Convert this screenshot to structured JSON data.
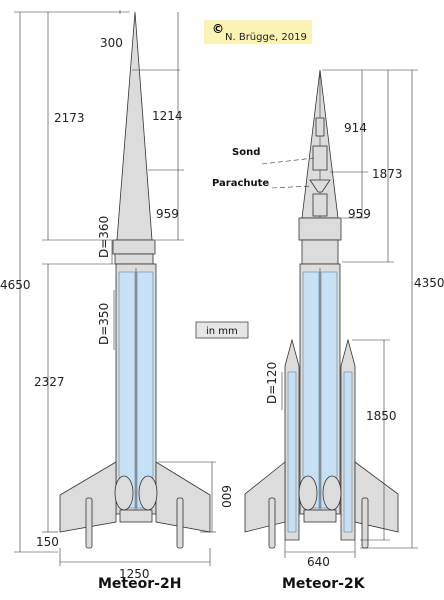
{
  "copyright": {
    "symbol": "©",
    "text": "N. Brügge, 2019"
  },
  "unit_label": "in mm",
  "rockets": [
    {
      "name": "Meteor-2H",
      "dimensions": {
        "tip": "300",
        "nose": "1214",
        "nose_lower": "959",
        "upper_total": "2173",
        "total": "4650",
        "lower": "2327",
        "fin_width": "1250",
        "base_offset": "150",
        "fin_height": "600",
        "d_upper": "D=360",
        "d_lower": "D=350"
      }
    },
    {
      "name": "Meteor-2K",
      "dimensions": {
        "nose": "914",
        "nose_lower": "959",
        "upper_total": "1873",
        "total": "4350",
        "booster_length": "1850",
        "booster_diameter": "D=120",
        "fin_span": "640"
      },
      "labels": {
        "sond": "Sond",
        "parachute": "Parachute"
      }
    }
  ]
}
